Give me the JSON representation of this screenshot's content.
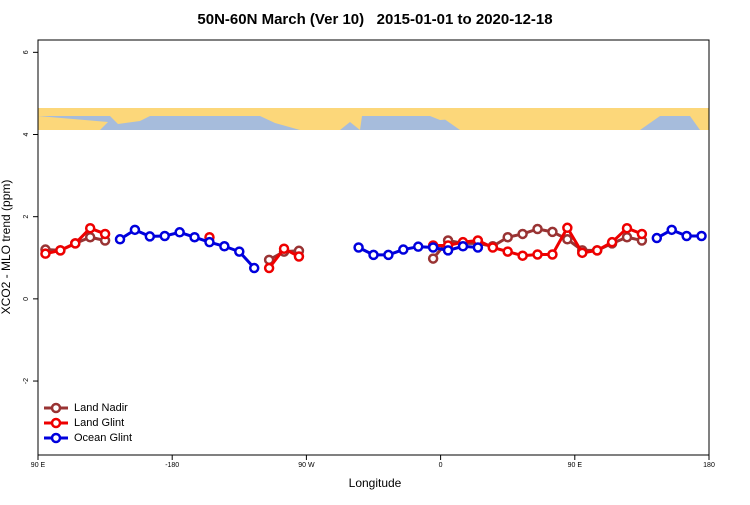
{
  "chart_data": {
    "type": "line",
    "title": "50N-60N March (Ver 10)   2015-01-01 to 2020-12-18",
    "xlabel": "Longitude",
    "ylabel": "XCO2 - MLO trend (ppm)",
    "xlim": [
      -270,
      180
    ],
    "xticks": [
      {
        "value": -270,
        "label": "90 E"
      },
      -180,
      {
        "value": -90,
        "label": "90 W"
      },
      0,
      {
        "value": 90,
        "label": "90 E"
      },
      180
    ],
    "ylim": [
      -3.8,
      6.3
    ],
    "yticks": [
      -2,
      0,
      2,
      4,
      6
    ],
    "legend": "bottom-left",
    "series": [
      {
        "name": "Land Nadir",
        "color": "#993333",
        "x": [
          -265,
          -255,
          -245,
          -235,
          -225,
          null,
          -115,
          -105,
          -95,
          null,
          -5,
          5,
          15,
          25,
          35,
          45,
          55,
          65,
          75,
          85,
          95,
          105,
          115,
          125,
          135
        ],
        "values": [
          1.2,
          1.18,
          1.35,
          1.5,
          1.42,
          null,
          0.95,
          1.15,
          1.17,
          null,
          0.98,
          1.42,
          1.35,
          1.35,
          1.28,
          1.5,
          1.58,
          1.7,
          1.63,
          1.45,
          1.18,
          1.18,
          1.35,
          1.5,
          1.42
        ]
      },
      {
        "name": "Land Glint",
        "color": "#ee0000",
        "x": [
          -265,
          -255,
          -245,
          -235,
          -225,
          null,
          -155,
          null,
          -115,
          -105,
          -95,
          null,
          -5,
          5,
          15,
          25,
          35,
          45,
          55,
          65,
          75,
          85,
          95,
          105,
          115,
          125,
          135
        ],
        "values": [
          1.1,
          1.18,
          1.35,
          1.72,
          1.58,
          null,
          1.5,
          null,
          0.75,
          1.22,
          1.03,
          null,
          1.3,
          1.3,
          1.38,
          1.42,
          1.25,
          1.15,
          1.05,
          1.08,
          1.08,
          1.73,
          1.12,
          1.18,
          1.38,
          1.72,
          1.58
        ]
      },
      {
        "name": "Ocean Glint",
        "color": "#0000dd",
        "x": [
          -215,
          -205,
          -195,
          -185,
          -175,
          -165,
          -155,
          -145,
          -135,
          -125,
          null,
          -55,
          -45,
          -35,
          -25,
          -15,
          -5,
          5,
          15,
          25,
          null,
          145,
          155,
          165,
          175
        ],
        "values": [
          1.45,
          1.68,
          1.52,
          1.53,
          1.62,
          1.5,
          1.38,
          1.28,
          1.15,
          0.75,
          null,
          1.25,
          1.07,
          1.07,
          1.2,
          1.27,
          1.25,
          1.18,
          1.28,
          1.25,
          null,
          1.48,
          1.68,
          1.53,
          1.53
        ]
      }
    ]
  }
}
